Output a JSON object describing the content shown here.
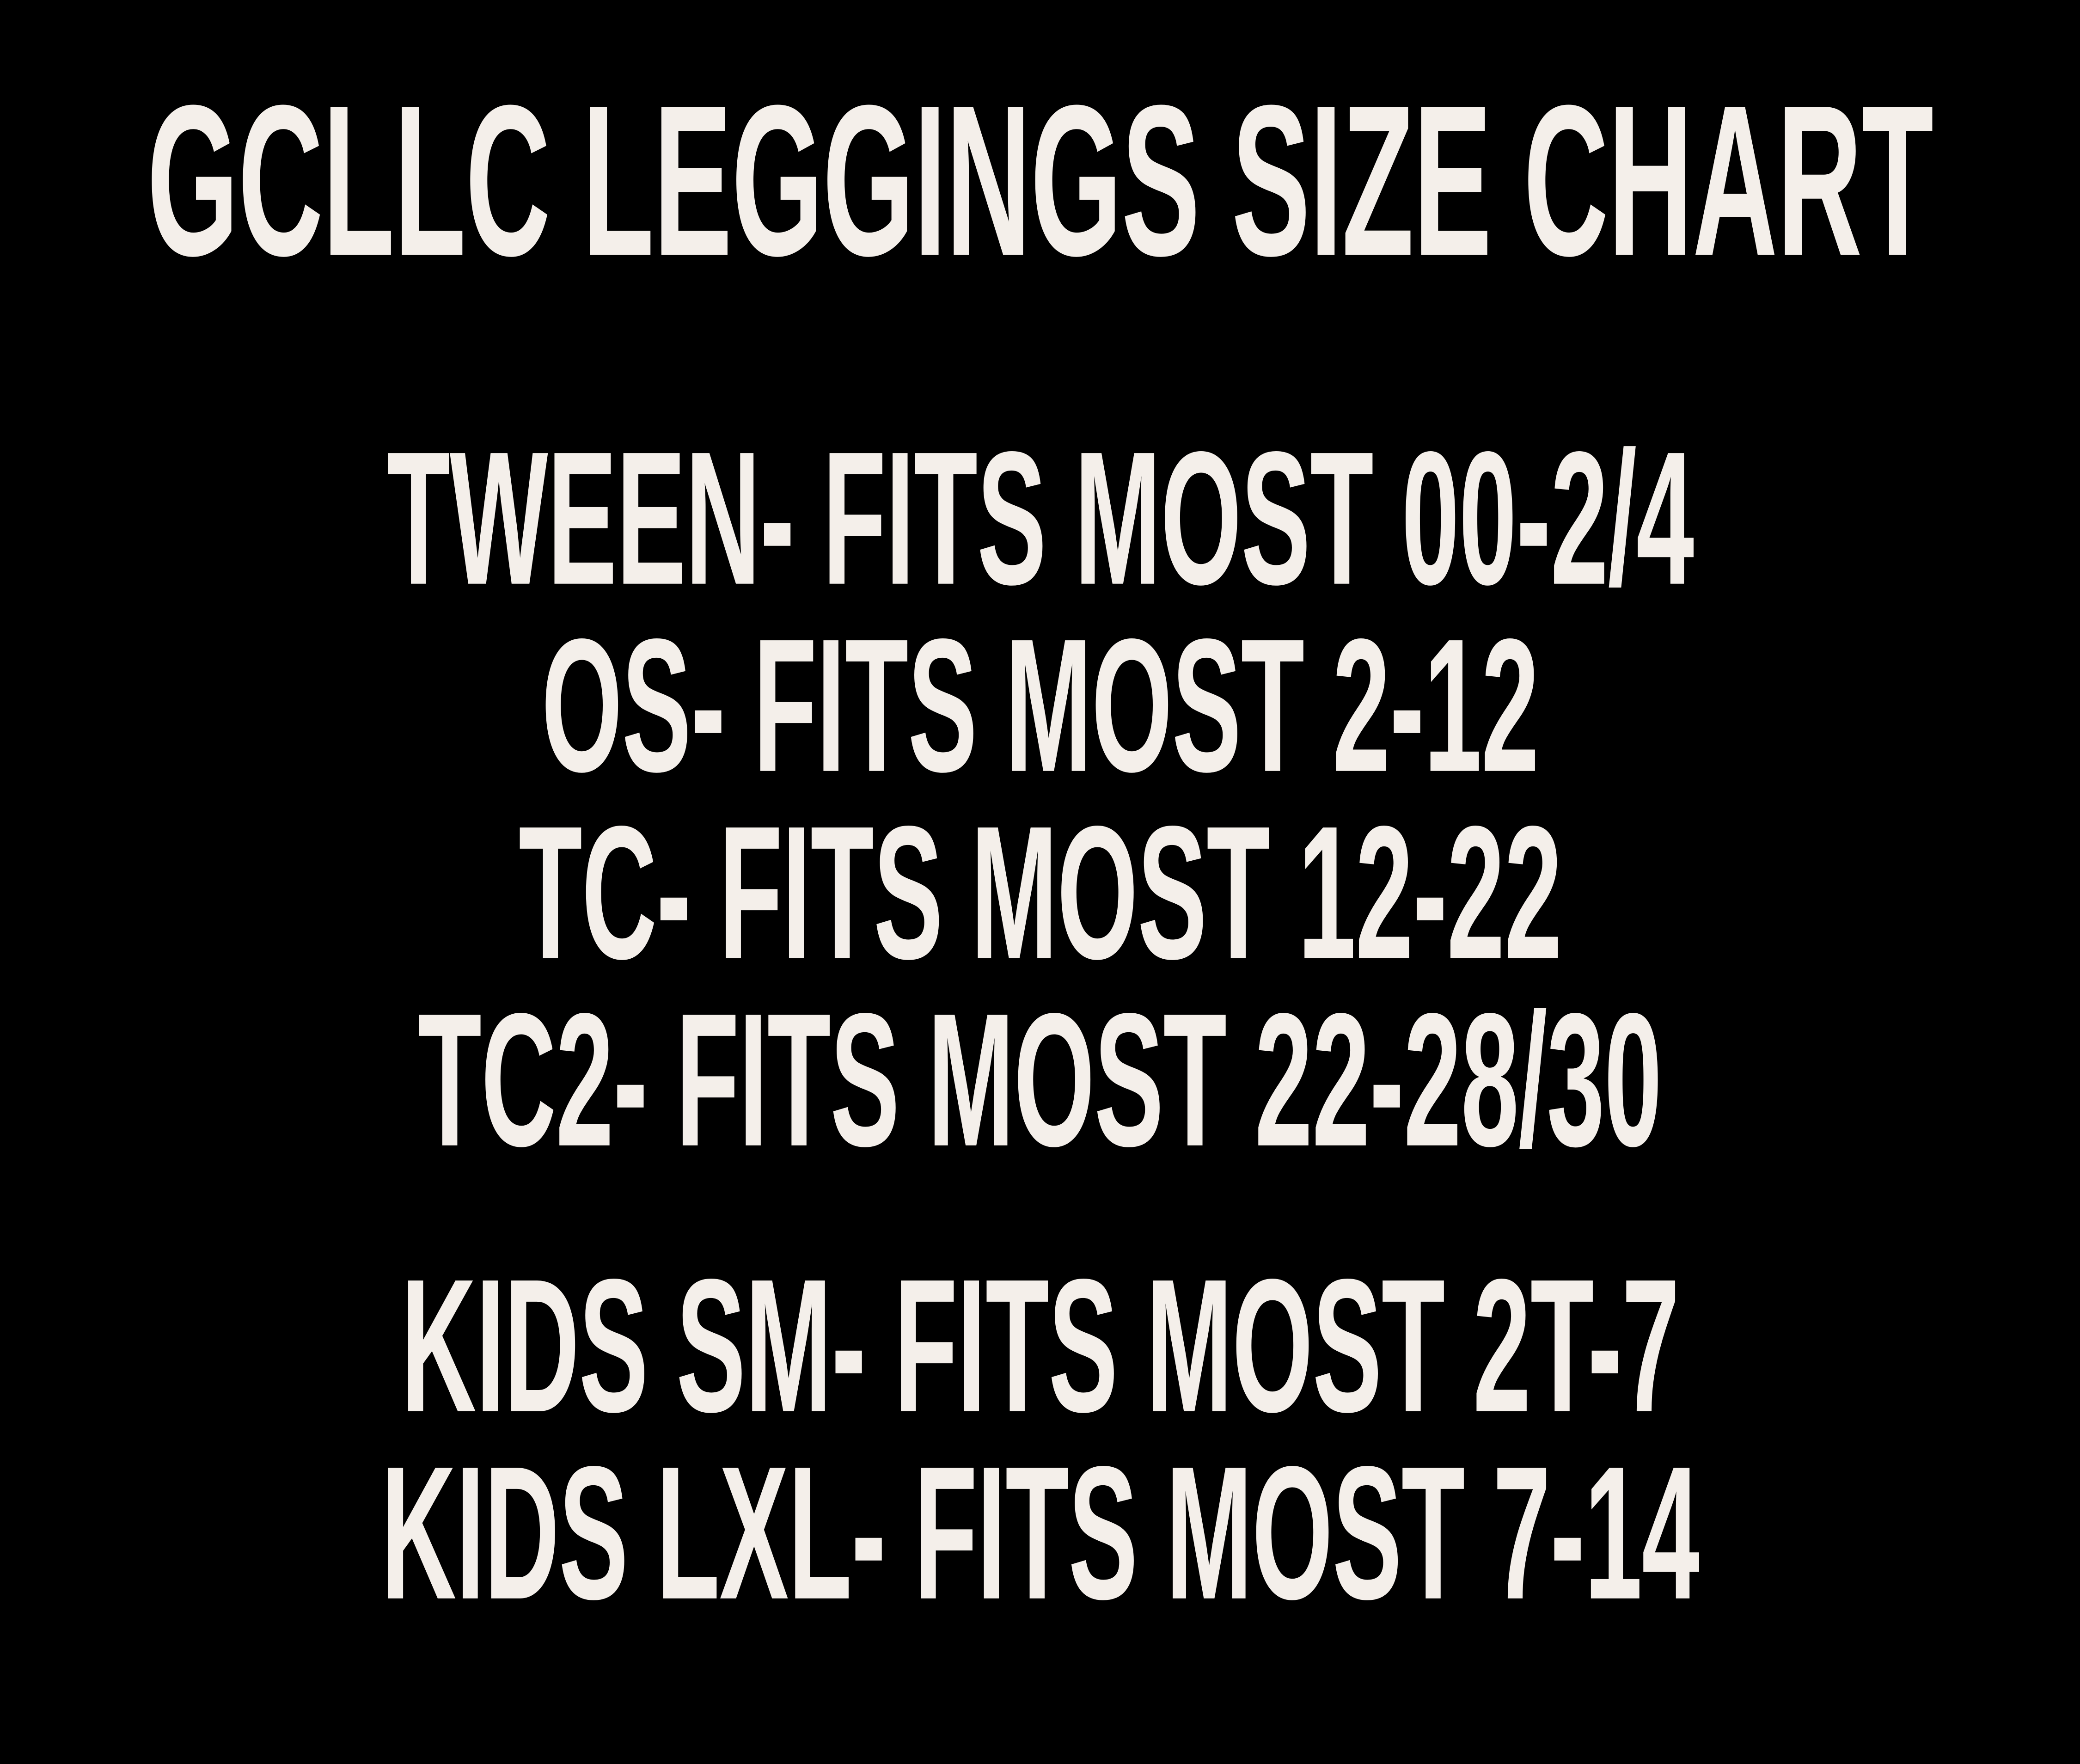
{
  "poster": {
    "background_color": "#000000",
    "text_color": "#f4efea",
    "title": "GCLLC LEGGINGS SIZE CHART"
  },
  "size_rows": [
    {
      "group": "adult",
      "label": "TWEEN",
      "fits": "FITS MOST 00-2/4",
      "text": "TWEEN- FITS MOST 00-2/4"
    },
    {
      "group": "adult",
      "label": "OS",
      "fits": "FITS MOST 2-12",
      "text": "OS- FITS MOST 2-12"
    },
    {
      "group": "adult",
      "label": "TC",
      "fits": "FITS MOST 12-22",
      "text": "TC- FITS MOST 12-22"
    },
    {
      "group": "adult",
      "label": "TC2",
      "fits": "FITS MOST 22-28/30",
      "text": "TC2- FITS MOST 22-28/30"
    },
    {
      "group": "kids",
      "label": "KIDS SM",
      "fits": "FITS MOST 2T-7",
      "text": "KIDS SM- FITS MOST 2T-7"
    },
    {
      "group": "kids",
      "label": "KIDS LXL",
      "fits": "FITS MOST 7-14",
      "text": "KIDS LXL- FITS MOST 7-14"
    }
  ]
}
